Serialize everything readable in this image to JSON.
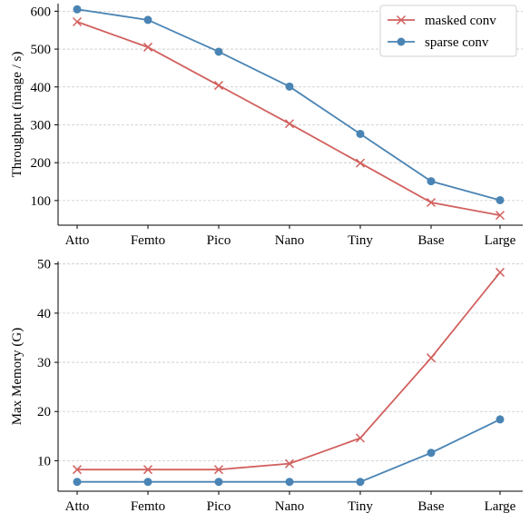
{
  "chart_data": [
    {
      "type": "line",
      "categories": [
        "Atto",
        "Femto",
        "Pico",
        "Nano",
        "Tiny",
        "Base",
        "Large"
      ],
      "ylabel": "Throughput (image / s)",
      "ylim": [
        35,
        620
      ],
      "yticks": [
        100,
        200,
        300,
        400,
        500,
        600
      ],
      "grid": "horizontal dashed",
      "legend": "top-right",
      "series": [
        {
          "name": "masked conv",
          "marker": "x",
          "color": "#d1605e",
          "values": [
            572,
            505,
            404,
            303,
            199,
            95,
            61
          ]
        },
        {
          "name": "sparse conv",
          "marker": "o",
          "color": "#4a84b4",
          "values": [
            605,
            577,
            493,
            401,
            276,
            151,
            101
          ]
        }
      ]
    },
    {
      "type": "line",
      "categories": [
        "Atto",
        "Femto",
        "Pico",
        "Nano",
        "Tiny",
        "Base",
        "Large"
      ],
      "ylabel": "Max Memory (G)",
      "ylim": [
        3.8,
        50.5
      ],
      "yticks": [
        10,
        20,
        30,
        40,
        50
      ],
      "grid": "horizontal dashed",
      "series": [
        {
          "name": "masked conv",
          "marker": "x",
          "color": "#d1605e",
          "values": [
            8.2,
            8.2,
            8.2,
            9.4,
            14.6,
            30.9,
            48.3
          ]
        },
        {
          "name": "sparse conv",
          "marker": "o",
          "color": "#4a84b4",
          "values": [
            5.7,
            5.7,
            5.7,
            5.7,
            5.7,
            11.6,
            18.4
          ]
        }
      ]
    }
  ]
}
